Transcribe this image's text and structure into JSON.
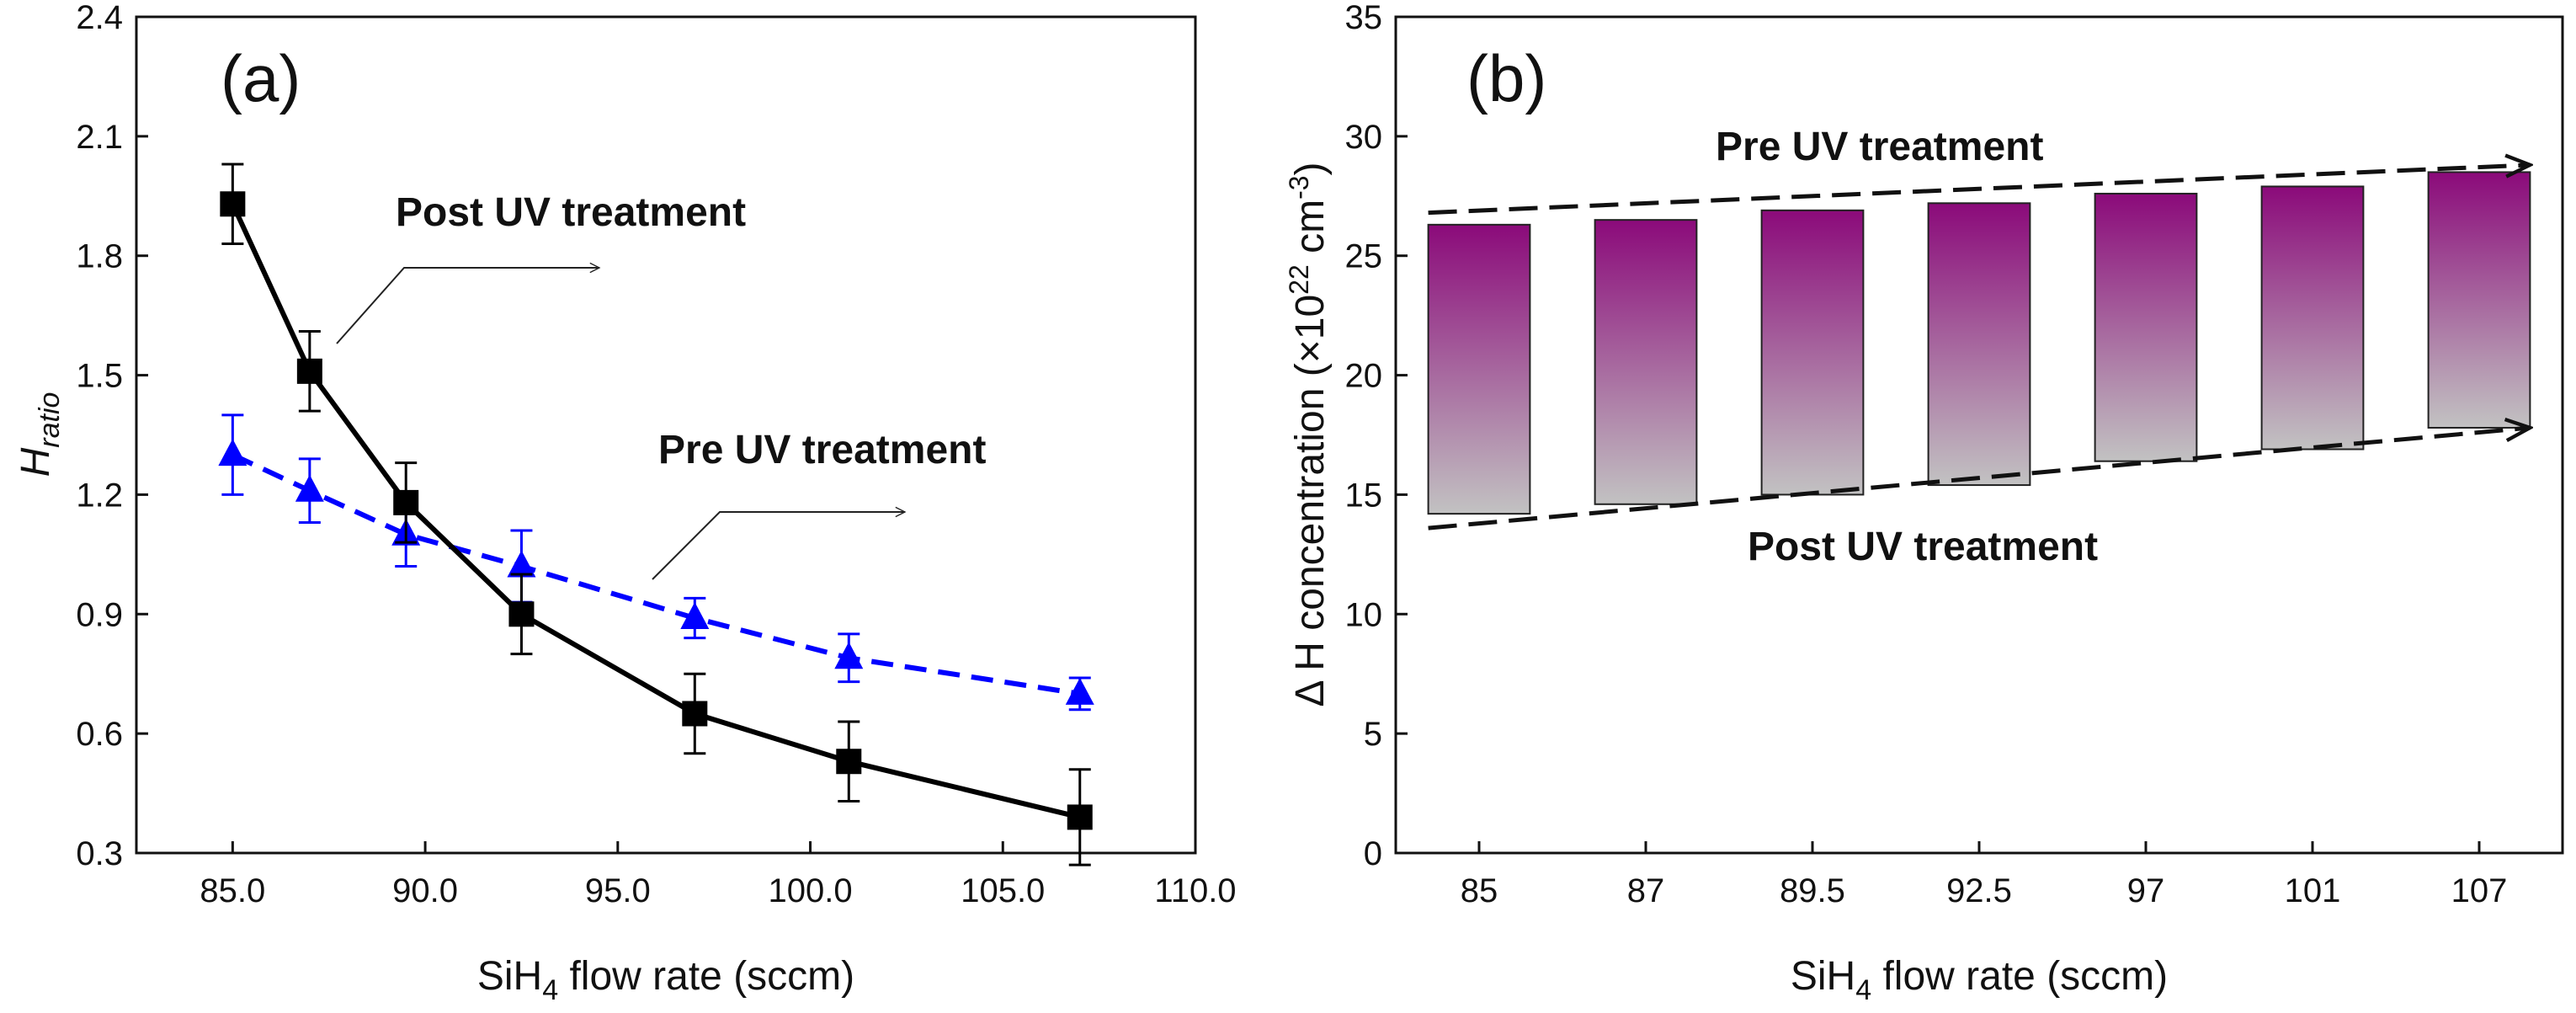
{
  "colors": {
    "post": "#000000",
    "pre": "#0000ff",
    "bar_top": "#8b0a7a",
    "bar_bottom": "#c2c2c2"
  },
  "chart_data": [
    {
      "id": "a",
      "type": "line",
      "panel_label": "(a)",
      "xlabel": {
        "pre": "SiH",
        "sub": "4",
        "post": " flow rate (sccm)"
      },
      "ylabel": {
        "main": "H",
        "sub": "ratio"
      },
      "xlim": [
        82.5,
        110.0
      ],
      "ylim": [
        0.3,
        2.4
      ],
      "xticks": [
        85.0,
        90.0,
        95.0,
        100.0,
        105.0,
        110.0
      ],
      "xtick_labels": [
        "85.0",
        "90.0",
        "95.0",
        "100.0",
        "105.0",
        "110.0"
      ],
      "yticks": [
        0.3,
        0.6,
        0.9,
        1.2,
        1.5,
        1.8,
        2.1,
        2.4
      ],
      "ytick_labels": [
        "0.3",
        "0.6",
        "0.9",
        "1.2",
        "1.5",
        "1.8",
        "2.1",
        "2.4"
      ],
      "series": [
        {
          "name": "Post UV treatment",
          "marker": "square",
          "line": "solid",
          "x": [
            85.0,
            87.0,
            89.5,
            92.5,
            97.0,
            101.0,
            107.0
          ],
          "y": [
            1.93,
            1.51,
            1.18,
            0.9,
            0.65,
            0.53,
            0.39
          ],
          "err": [
            0.1,
            0.1,
            0.1,
            0.1,
            0.1,
            0.1,
            0.12
          ]
        },
        {
          "name": "Pre UV treatment",
          "marker": "triangle",
          "line": "dashed",
          "x": [
            85.0,
            87.0,
            89.5,
            92.5,
            97.0,
            101.0,
            107.0
          ],
          "y": [
            1.3,
            1.21,
            1.1,
            1.02,
            0.89,
            0.79,
            0.7
          ],
          "err": [
            0.1,
            0.08,
            0.08,
            0.09,
            0.05,
            0.06,
            0.04
          ]
        }
      ],
      "annotations": [
        {
          "text": "Post UV treatment",
          "arrow": "to-right"
        },
        {
          "text": "Pre UV treatment",
          "arrow": "to-right"
        }
      ]
    },
    {
      "id": "b",
      "type": "bar",
      "subtype": "floating",
      "panel_label": "(b)",
      "xlabel": {
        "pre": "SiH",
        "sub": "4",
        "post": " flow rate (sccm)"
      },
      "ylabel": {
        "pre": "Δ H concentration (×10",
        "sup1": "22",
        "mid": " cm",
        "sup2": "-3",
        "post": ")"
      },
      "categories": [
        "85",
        "87",
        "89.5",
        "92.5",
        "97",
        "101",
        "107"
      ],
      "ylim": [
        0,
        35
      ],
      "yticks": [
        0,
        5,
        10,
        15,
        20,
        25,
        30,
        35
      ],
      "ytick_labels": [
        "0",
        "5",
        "10",
        "15",
        "20",
        "25",
        "30",
        "35"
      ],
      "series": [
        {
          "name": "Pre UV treatment",
          "values": [
            26.3,
            26.5,
            26.9,
            27.2,
            27.6,
            27.9,
            28.5
          ]
        },
        {
          "name": "Post UV treatment",
          "values": [
            14.2,
            14.6,
            15.0,
            15.4,
            16.4,
            16.9,
            17.8
          ]
        }
      ],
      "trend_lines": [
        {
          "label": "Pre UV treatment",
          "from": [
            0,
            26.8
          ],
          "to": [
            6,
            28.8
          ]
        },
        {
          "label": "Post UV treatment",
          "from": [
            0,
            13.6
          ],
          "to": [
            6,
            17.8
          ]
        }
      ]
    }
  ]
}
